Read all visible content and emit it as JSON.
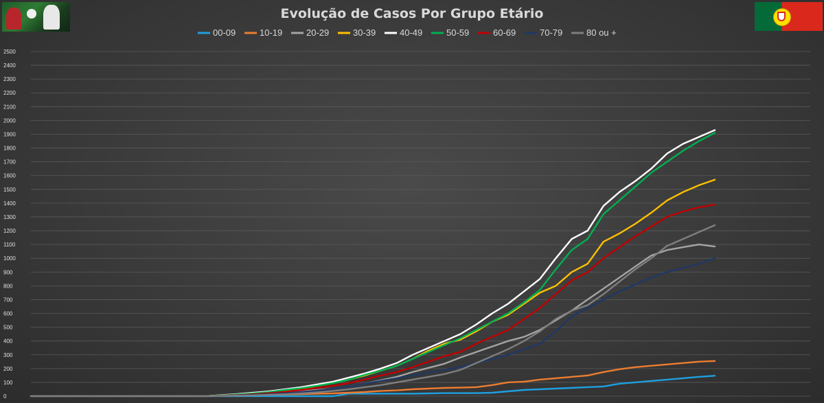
{
  "chart_data": {
    "type": "line",
    "title": "Evolução de Casos Por Grupo Etário",
    "xlabel": "",
    "ylabel": "",
    "ylim": [
      0,
      2500
    ],
    "yticks": [
      0,
      100,
      200,
      300,
      400,
      500,
      600,
      700,
      800,
      900,
      1000,
      1100,
      1200,
      1300,
      1400,
      1500,
      1600,
      1700,
      1800,
      1900,
      2000,
      2100,
      2200,
      2300,
      2400,
      2500
    ],
    "grid": true,
    "legend_position": "top",
    "x": [
      1,
      2,
      3,
      4,
      5,
      6,
      7,
      8,
      9,
      10,
      11,
      12,
      13,
      14,
      15,
      16,
      17,
      18,
      19,
      20,
      21,
      22,
      23,
      24,
      25,
      26,
      27,
      28,
      29,
      30,
      31,
      32,
      33,
      34,
      35,
      36,
      37,
      38,
      39,
      40,
      41,
      42,
      43,
      44
    ],
    "series": [
      {
        "name": "00-09",
        "color": "#1ea0e0",
        "values": [
          0,
          0,
          0,
          0,
          0,
          0,
          0,
          0,
          0,
          0,
          0,
          0,
          0,
          0,
          0,
          0,
          0,
          0,
          0,
          0,
          18,
          18,
          18,
          18,
          18,
          20,
          22,
          22,
          22,
          25,
          35,
          45,
          50,
          55,
          60,
          65,
          70,
          90,
          100,
          110,
          120,
          130,
          140,
          148
        ]
      },
      {
        "name": "10-19",
        "color": "#ed7d31",
        "values": [
          0,
          0,
          0,
          0,
          0,
          0,
          0,
          0,
          0,
          0,
          0,
          0,
          2,
          5,
          8,
          10,
          12,
          15,
          18,
          20,
          25,
          30,
          38,
          42,
          50,
          55,
          60,
          62,
          65,
          80,
          100,
          105,
          120,
          130,
          140,
          150,
          175,
          195,
          210,
          220,
          230,
          240,
          250,
          255
        ]
      },
      {
        "name": "20-29",
        "color": "#a5a5a5",
        "values": [
          0,
          0,
          0,
          0,
          0,
          0,
          0,
          0,
          0,
          0,
          0,
          0,
          5,
          10,
          15,
          22,
          28,
          35,
          45,
          55,
          70,
          90,
          115,
          140,
          175,
          205,
          235,
          280,
          320,
          360,
          400,
          430,
          480,
          550,
          620,
          700,
          780,
          860,
          940,
          1020,
          1060,
          1080,
          1100,
          1085
        ]
      },
      {
        "name": "30-39",
        "color": "#ffc000",
        "values": [
          0,
          0,
          0,
          0,
          0,
          0,
          0,
          0,
          0,
          0,
          0,
          0,
          5,
          12,
          20,
          30,
          40,
          55,
          75,
          95,
          120,
          150,
          185,
          220,
          270,
          330,
          380,
          410,
          470,
          540,
          590,
          670,
          750,
          800,
          900,
          960,
          1120,
          1180,
          1250,
          1330,
          1420,
          1480,
          1530,
          1570
        ]
      },
      {
        "name": "40-49",
        "color": "#ffffff",
        "values": [
          0,
          0,
          0,
          0,
          0,
          0,
          0,
          0,
          0,
          0,
          0,
          0,
          8,
          15,
          25,
          35,
          50,
          65,
          85,
          105,
          135,
          165,
          200,
          240,
          300,
          350,
          400,
          450,
          520,
          600,
          670,
          760,
          850,
          1000,
          1140,
          1200,
          1380,
          1480,
          1560,
          1650,
          1760,
          1830,
          1880,
          1930
        ]
      },
      {
        "name": "50-59",
        "color": "#00b050",
        "values": [
          0,
          0,
          0,
          0,
          0,
          0,
          0,
          0,
          0,
          0,
          0,
          0,
          6,
          12,
          20,
          30,
          45,
          58,
          75,
          95,
          120,
          155,
          185,
          220,
          270,
          320,
          370,
          420,
          480,
          540,
          600,
          680,
          770,
          920,
          1060,
          1140,
          1320,
          1420,
          1520,
          1620,
          1700,
          1780,
          1850,
          1910
        ]
      },
      {
        "name": "60-69",
        "color": "#c00000",
        "values": [
          0,
          0,
          0,
          0,
          0,
          0,
          0,
          0,
          0,
          0,
          0,
          0,
          4,
          8,
          14,
          22,
          32,
          45,
          60,
          75,
          95,
          120,
          150,
          175,
          210,
          250,
          290,
          320,
          380,
          430,
          480,
          560,
          640,
          740,
          840,
          900,
          1000,
          1080,
          1160,
          1230,
          1300,
          1340,
          1370,
          1390
        ]
      },
      {
        "name": "70-79",
        "color": "#203864",
        "values": [
          0,
          0,
          0,
          0,
          0,
          0,
          0,
          0,
          0,
          0,
          0,
          0,
          3,
          6,
          10,
          15,
          22,
          30,
          40,
          55,
          70,
          90,
          110,
          130,
          150,
          170,
          190,
          210,
          240,
          270,
          300,
          340,
          380,
          470,
          580,
          640,
          700,
          760,
          810,
          860,
          900,
          930,
          960,
          1000
        ]
      },
      {
        "name": "80 ou +",
        "color": "#7f7f7f",
        "values": [
          0,
          0,
          0,
          0,
          0,
          0,
          0,
          0,
          0,
          0,
          0,
          0,
          2,
          4,
          6,
          10,
          14,
          20,
          28,
          38,
          50,
          65,
          80,
          100,
          120,
          140,
          160,
          190,
          240,
          290,
          340,
          400,
          470,
          560,
          620,
          660,
          740,
          830,
          920,
          1000,
          1090,
          1140,
          1190,
          1240
        ]
      }
    ]
  }
}
